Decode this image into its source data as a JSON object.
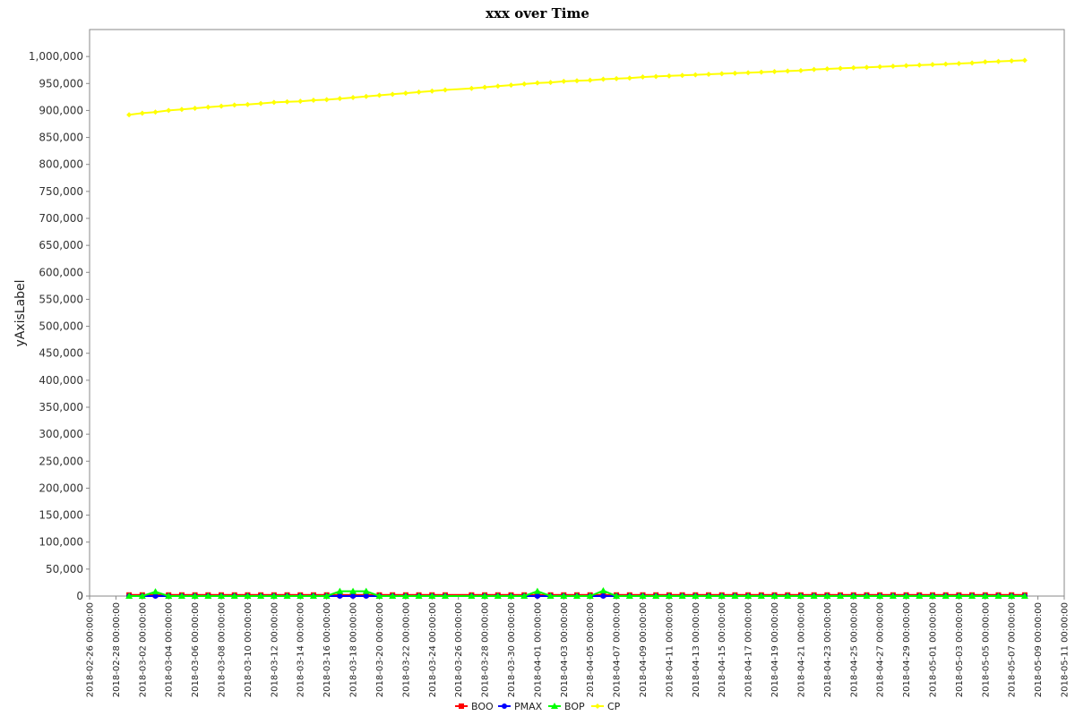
{
  "chart_data": {
    "type": "line",
    "title": "xxx over Time",
    "ylabel": "yAxisLabel",
    "xlabel": "",
    "ylim": [
      0,
      1050000
    ],
    "y_ticks": [
      0,
      50000,
      100000,
      150000,
      200000,
      250000,
      300000,
      350000,
      400000,
      450000,
      500000,
      550000,
      600000,
      650000,
      700000,
      750000,
      800000,
      850000,
      900000,
      950000,
      1000000
    ],
    "y_tick_labels": [
      "0",
      "50,000",
      "100,000",
      "150,000",
      "200,000",
      "250,000",
      "300,000",
      "350,000",
      "400,000",
      "450,000",
      "500,000",
      "550,000",
      "600,000",
      "650,000",
      "700,000",
      "750,000",
      "800,000",
      "850,000",
      "900,000",
      "950,000",
      "1,000,000"
    ],
    "x_tick_labels": [
      "2018-02-26 00:00:00",
      "2018-02-28 00:00:00",
      "2018-03-02 00:00:00",
      "2018-03-04 00:00:00",
      "2018-03-06 00:00:00",
      "2018-03-08 00:00:00",
      "2018-03-10 00:00:00",
      "2018-03-12 00:00:00",
      "2018-03-14 00:00:00",
      "2018-03-16 00:00:00",
      "2018-03-18 00:00:00",
      "2018-03-20 00:00:00",
      "2018-03-22 00:00:00",
      "2018-03-24 00:00:00",
      "2018-03-26 00:00:00",
      "2018-03-28 00:00:00",
      "2018-03-30 00:00:00",
      "2018-04-01 00:00:00",
      "2018-04-03 00:00:00",
      "2018-04-05 00:00:00",
      "2018-04-07 00:00:00",
      "2018-04-09 00:00:00",
      "2018-04-11 00:00:00",
      "2018-04-13 00:00:00",
      "2018-04-15 00:00:00",
      "2018-04-17 00:00:00",
      "2018-04-19 00:00:00",
      "2018-04-21 00:00:00",
      "2018-04-23 00:00:00",
      "2018-04-25 00:00:00",
      "2018-04-27 00:00:00",
      "2018-04-29 00:00:00",
      "2018-05-01 00:00:00",
      "2018-05-03 00:00:00",
      "2018-05-05 00:00:00",
      "2018-05-07 00:00:00",
      "2018-05-09 00:00:00",
      "2018-05-11 00:00:00"
    ],
    "xlim": [
      "2018-02-26",
      "2018-05-11"
    ],
    "legend_position": "bottom",
    "x": [
      "2018-03-01",
      "2018-03-02",
      "2018-03-03",
      "2018-03-04",
      "2018-03-05",
      "2018-03-06",
      "2018-03-07",
      "2018-03-08",
      "2018-03-09",
      "2018-03-10",
      "2018-03-11",
      "2018-03-12",
      "2018-03-13",
      "2018-03-14",
      "2018-03-15",
      "2018-03-16",
      "2018-03-17",
      "2018-03-18",
      "2018-03-19",
      "2018-03-20",
      "2018-03-21",
      "2018-03-22",
      "2018-03-23",
      "2018-03-24",
      "2018-03-25",
      "2018-03-27",
      "2018-03-28",
      "2018-03-29",
      "2018-03-30",
      "2018-03-31",
      "2018-04-01",
      "2018-04-02",
      "2018-04-03",
      "2018-04-04",
      "2018-04-05",
      "2018-04-06",
      "2018-04-07",
      "2018-04-08",
      "2018-04-09",
      "2018-04-10",
      "2018-04-11",
      "2018-04-12",
      "2018-04-13",
      "2018-04-14",
      "2018-04-15",
      "2018-04-16",
      "2018-04-17",
      "2018-04-18",
      "2018-04-19",
      "2018-04-20",
      "2018-04-21",
      "2018-04-22",
      "2018-04-23",
      "2018-04-24",
      "2018-04-25",
      "2018-04-26",
      "2018-04-27",
      "2018-04-28",
      "2018-04-29",
      "2018-04-30",
      "2018-05-01",
      "2018-05-02",
      "2018-05-03",
      "2018-05-04",
      "2018-05-05",
      "2018-05-06",
      "2018-05-07",
      "2018-05-08"
    ],
    "series": [
      {
        "name": "BOO",
        "color": "#ff0000",
        "marker": "square",
        "values": [
          2000,
          2000,
          2000,
          2000,
          2000,
          2000,
          2000,
          2000,
          2000,
          2000,
          2000,
          2000,
          2000,
          2000,
          2000,
          2000,
          2000,
          2000,
          2000,
          2000,
          2000,
          2000,
          2000,
          2000,
          2000,
          2000,
          2000,
          2000,
          2000,
          2000,
          2000,
          2000,
          2000,
          2000,
          2000,
          2000,
          2000,
          2000,
          2000,
          2000,
          2000,
          2000,
          2000,
          2000,
          2000,
          2000,
          2000,
          2000,
          2000,
          2000,
          2000,
          2000,
          2000,
          2000,
          2000,
          2000,
          2000,
          2000,
          2000,
          2000,
          2000,
          2000,
          2000,
          2000,
          2000,
          2000,
          2000,
          2000
        ]
      },
      {
        "name": "PMAX",
        "color": "#0000ff",
        "marker": "circle",
        "values": [
          0,
          0,
          0,
          0,
          0,
          0,
          0,
          0,
          0,
          0,
          0,
          0,
          0,
          0,
          0,
          0,
          0,
          0,
          0,
          0,
          0,
          0,
          0,
          0,
          0,
          0,
          0,
          0,
          0,
          0,
          0,
          0,
          0,
          0,
          0,
          0,
          0,
          0,
          0,
          0,
          0,
          0,
          0,
          0,
          0,
          0,
          0,
          0,
          0,
          0,
          0,
          0,
          0,
          0,
          0,
          0,
          0,
          0,
          0,
          0,
          0,
          0,
          0,
          0,
          0,
          0,
          0,
          0
        ]
      },
      {
        "name": "BOP",
        "color": "#00ff00",
        "marker": "triangle",
        "values": [
          0,
          0,
          8000,
          0,
          0,
          0,
          0,
          0,
          0,
          0,
          0,
          0,
          0,
          0,
          0,
          0,
          9000,
          9000,
          9000,
          0,
          0,
          0,
          0,
          0,
          0,
          0,
          0,
          0,
          0,
          0,
          9000,
          0,
          0,
          0,
          0,
          10000,
          0,
          0,
          0,
          0,
          0,
          0,
          0,
          0,
          0,
          0,
          0,
          0,
          0,
          0,
          0,
          0,
          0,
          0,
          0,
          0,
          0,
          0,
          0,
          0,
          0,
          0,
          0,
          0,
          0,
          0,
          0,
          0
        ]
      },
      {
        "name": "CP",
        "color": "#ffff00",
        "marker": "diamond",
        "values": [
          892000,
          895000,
          897000,
          900000,
          902000,
          904000,
          906000,
          908000,
          910000,
          911000,
          913000,
          915000,
          916000,
          917000,
          919000,
          920000,
          922000,
          924000,
          926000,
          928000,
          930000,
          932000,
          934000,
          936000,
          938000,
          941000,
          943000,
          945000,
          947000,
          949000,
          951000,
          952000,
          954000,
          955000,
          956000,
          958000,
          959000,
          960000,
          962000,
          963000,
          964000,
          965000,
          966000,
          967000,
          968000,
          969000,
          970000,
          971000,
          972000,
          973000,
          974000,
          976000,
          977000,
          978000,
          979000,
          980000,
          981000,
          982000,
          983000,
          984000,
          985000,
          986000,
          987000,
          988000,
          990000,
          991000,
          992000,
          993000
        ]
      }
    ]
  }
}
